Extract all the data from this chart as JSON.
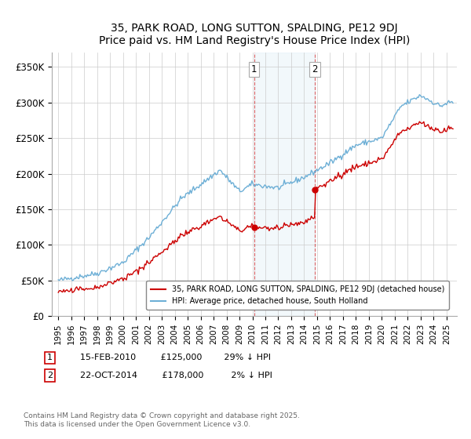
{
  "title": "35, PARK ROAD, LONG SUTTON, SPALDING, PE12 9DJ",
  "subtitle": "Price paid vs. HM Land Registry's House Price Index (HPI)",
  "ylim": [
    0,
    370000
  ],
  "yticks": [
    0,
    50000,
    100000,
    150000,
    200000,
    250000,
    300000,
    350000
  ],
  "ytick_labels": [
    "£0",
    "£50K",
    "£100K",
    "£150K",
    "£200K",
    "£250K",
    "£300K",
    "£350K"
  ],
  "hpi_color": "#6dafd6",
  "price_color": "#cc0000",
  "shade_color": "#d6e8f5",
  "transaction1_year": 2010.12,
  "transaction1_price": 125000,
  "transaction2_year": 2014.81,
  "transaction2_price": 178000,
  "legend_label1": "35, PARK ROAD, LONG SUTTON, SPALDING, PE12 9DJ (detached house)",
  "legend_label2": "HPI: Average price, detached house, South Holland",
  "copyright": "Contains HM Land Registry data © Crown copyright and database right 2025.\nThis data is licensed under the Open Government Licence v3.0.",
  "background_color": "#ffffff",
  "grid_color": "#cccccc",
  "hpi_waypoints_years": [
    1995.0,
    1998.0,
    2000.0,
    2002.0,
    2004.5,
    2007.5,
    2009.0,
    2010.0,
    2012.0,
    2014.0,
    2016.0,
    2018.0,
    2020.0,
    2021.5,
    2023.0,
    2024.5,
    2025.2
  ],
  "hpi_waypoints_vals": [
    50000,
    60000,
    75000,
    110000,
    165000,
    205000,
    175000,
    185000,
    180000,
    195000,
    215000,
    240000,
    250000,
    295000,
    310000,
    295000,
    300000
  ]
}
